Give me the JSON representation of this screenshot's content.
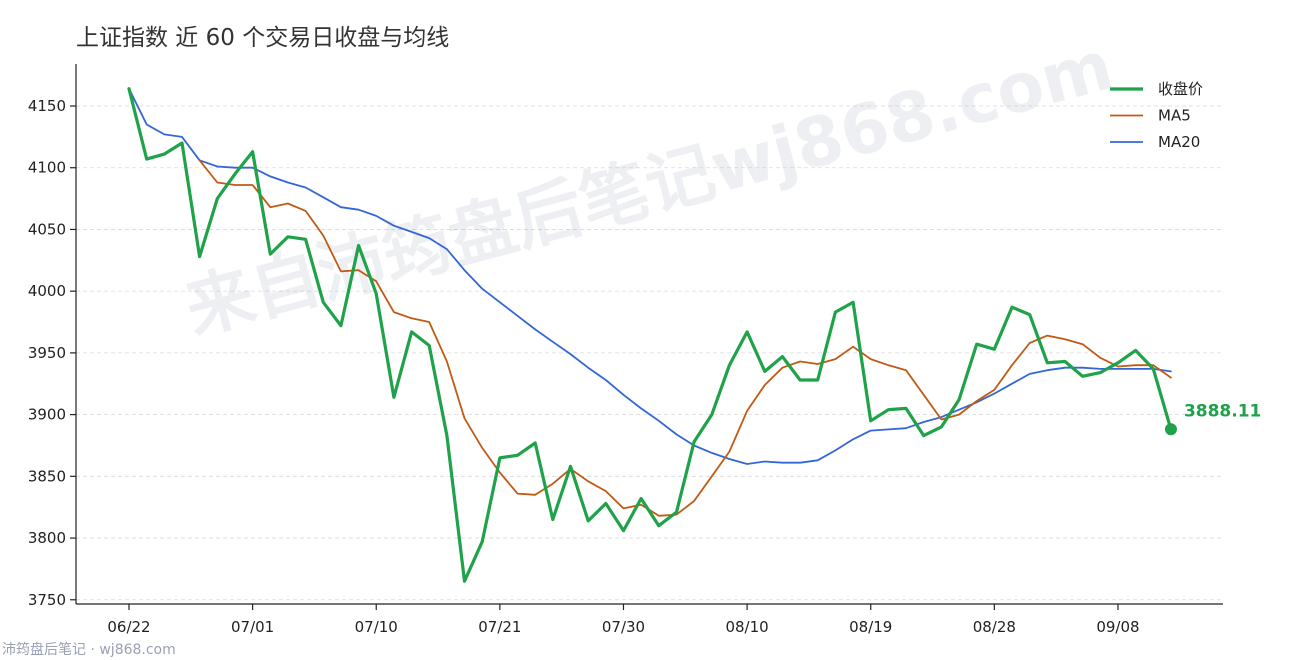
{
  "watermark": {
    "main": "来自沛筠盘后笔记wj868.com",
    "footer": "沛筠盘后笔记 · wj868.com"
  },
  "chart_data": {
    "type": "line",
    "title": "上证指数 近 60 个交易日收盘与均线",
    "xlabel": "",
    "ylabel": "",
    "ylim": [
      3740,
      4180
    ],
    "yticks": [
      3750,
      3800,
      3850,
      3900,
      3950,
      4000,
      4050,
      4100,
      4150
    ],
    "x_ticks": [
      {
        "index": 0,
        "label": "06/22"
      },
      {
        "index": 7,
        "label": "07/01"
      },
      {
        "index": 14,
        "label": "07/10"
      },
      {
        "index": 21,
        "label": "07/21"
      },
      {
        "index": 28,
        "label": "07/30"
      },
      {
        "index": 35,
        "label": "08/10"
      },
      {
        "index": 42,
        "label": "08/19"
      },
      {
        "index": 49,
        "label": "08/28"
      },
      {
        "index": 56,
        "label": "09/08"
      }
    ],
    "grid": "horizontal-dashed",
    "legend": "top-right",
    "last_value_label": "3888.11",
    "series": [
      {
        "name": "收盘价",
        "color": "#1fa24a",
        "values": [
          4164,
          4107,
          4111,
          4120,
          4028,
          4075,
          4095,
          4113,
          4030,
          4044,
          4042,
          3991,
          3972,
          4037,
          3998,
          3914,
          3967,
          3956,
          3883,
          3765,
          3797,
          3865,
          3867,
          3877,
          3815,
          3858,
          3814,
          3828,
          3806,
          3832,
          3810,
          3821,
          3878,
          3900,
          3940,
          3967,
          3935,
          3947,
          3928,
          3928,
          3983,
          3991,
          3895,
          3904,
          3905,
          3883,
          3890,
          3912,
          3957,
          3953,
          3987,
          3981,
          3942,
          3943,
          3931,
          3934,
          3942,
          3952,
          3937,
          3888.11
        ]
      },
      {
        "name": "MA5",
        "color": "#c05a14",
        "values": [
          null,
          null,
          null,
          null,
          4106,
          4088,
          4086,
          4086,
          4068,
          4071,
          4065,
          4045,
          4016,
          4017,
          4008,
          3983,
          3978,
          3975,
          3943,
          3897,
          3873,
          3853,
          3836,
          3835,
          3844,
          3856,
          3846,
          3838,
          3824,
          3827,
          3818,
          3819,
          3830,
          3850,
          3870,
          3903,
          3924,
          3938,
          3943,
          3941,
          3945,
          3955,
          3945,
          3940,
          3936,
          3916,
          3896,
          3900,
          3911,
          3920,
          3940,
          3958,
          3964,
          3961,
          3957,
          3946,
          3939,
          3940,
          3940,
          3930
        ]
      },
      {
        "name": "MA20",
        "color": "#3366d9",
        "values": [
          4164,
          4135,
          4127,
          4125,
          4106,
          4101,
          4100,
          4100,
          4093,
          4088,
          4084,
          4076,
          4068,
          4066,
          4061,
          4053,
          4048,
          4043,
          4034,
          4017,
          4002,
          3991,
          3980,
          3969,
          3959,
          3949,
          3938,
          3928,
          3916,
          3905,
          3895,
          3884,
          3875,
          3869,
          3864,
          3860,
          3862,
          3861,
          3861,
          3863,
          3871,
          3880,
          3887,
          3888,
          3889,
          3894,
          3898,
          3904,
          3910,
          3917,
          3925,
          3933,
          3936,
          3938,
          3938,
          3937,
          3937,
          3937,
          3937,
          3935
        ]
      }
    ]
  }
}
